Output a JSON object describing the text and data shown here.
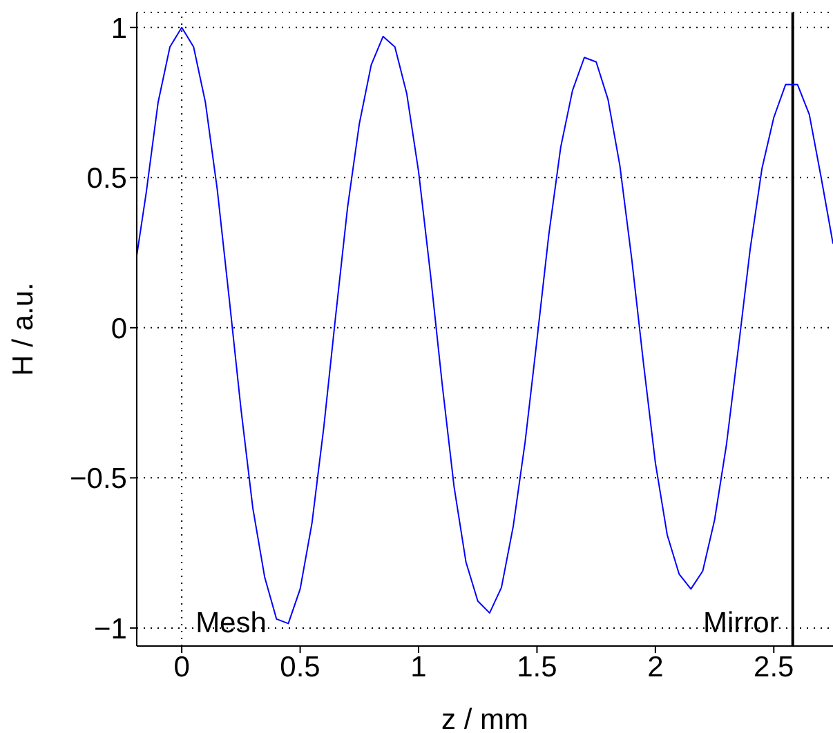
{
  "chart_data": {
    "type": "line",
    "xlabel": "z / mm",
    "ylabel": "H / a.u.",
    "x": [
      -0.19,
      -0.15,
      -0.1,
      -0.05,
      0,
      0.05,
      0.1,
      0.15,
      0.2,
      0.25,
      0.3,
      0.35,
      0.4,
      0.45,
      0.5,
      0.55,
      0.6,
      0.65,
      0.7,
      0.75,
      0.8,
      0.85,
      0.9,
      0.95,
      1,
      1.05,
      1.1,
      1.15,
      1.2,
      1.25,
      1.3,
      1.35,
      1.4,
      1.45,
      1.5,
      1.55,
      1.6,
      1.65,
      1.7,
      1.75,
      1.8,
      1.85,
      1.9,
      1.95,
      2,
      2.05,
      2.1,
      2.15,
      2.2,
      2.25,
      2.3,
      2.35,
      2.4,
      2.45,
      2.5,
      2.55,
      2.6,
      2.65,
      2.7,
      2.75
    ],
    "series": [
      {
        "color": "#0000ff",
        "values": [
          0.24,
          0.45,
          0.75,
          0.935,
          1.0,
          0.935,
          0.75,
          0.46,
          0.1,
          -0.27,
          -0.6,
          -0.83,
          -0.97,
          -0.985,
          -0.87,
          -0.65,
          -0.33,
          0.04,
          0.4,
          0.68,
          0.875,
          0.97,
          0.935,
          0.78,
          0.52,
          0.18,
          -0.19,
          -0.53,
          -0.78,
          -0.91,
          -0.95,
          -0.865,
          -0.66,
          -0.38,
          -0.04,
          0.31,
          0.6,
          0.79,
          0.9,
          0.885,
          0.76,
          0.54,
          0.23,
          -0.12,
          -0.45,
          -0.69,
          -0.82,
          -0.87,
          -0.81,
          -0.64,
          -0.39,
          -0.07,
          0.26,
          0.53,
          0.7,
          0.81,
          0.81,
          0.71,
          0.5,
          0.28
        ]
      }
    ],
    "xlim": [
      -0.19,
      2.75
    ],
    "xticks": [
      0,
      0.5,
      1,
      1.5,
      2,
      2.5
    ],
    "ylim": [
      -1.06,
      1.05
    ],
    "yticks": [
      -1,
      -0.5,
      0,
      0.5,
      1
    ],
    "grid": "y",
    "legend": false,
    "marker": "none",
    "line_style": "solid",
    "ref_lines": [
      {
        "axis": "x",
        "value": 0,
        "label": "Mesh",
        "color": "#000000",
        "line_style": "dotted"
      },
      {
        "axis": "x",
        "value": 2.58,
        "label": "Mirror",
        "color": "#000000",
        "line_style": "solid"
      }
    ]
  }
}
